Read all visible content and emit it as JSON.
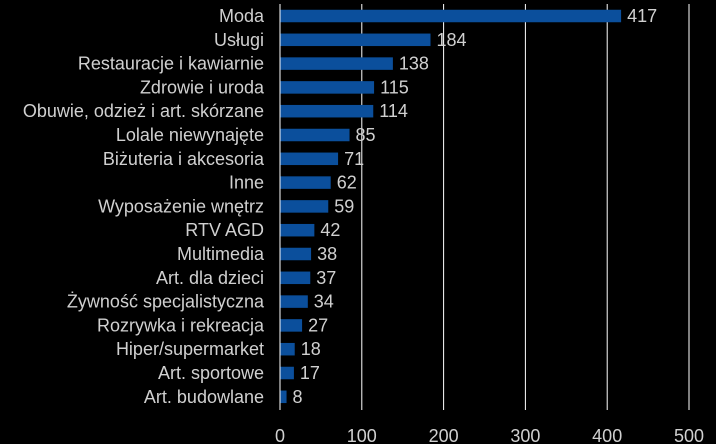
{
  "chart_data": {
    "type": "bar",
    "orientation": "horizontal",
    "categories": [
      "Moda",
      "Usługi",
      "Restauracje i kawiarnie",
      "Zdrowie i uroda",
      "Obuwie, odzież i art. skórzane",
      "Lolale niewynajęte",
      "Biżuteria i akcesoria",
      "Inne",
      "Wyposażenie wnętrz",
      "RTV AGD",
      "Multimedia",
      "Art. dla dzieci",
      "Żywność specjalistyczna",
      "Rozrywka i rekreacja",
      "Hiper/supermarket",
      "Art. sportowe",
      "Art. budowlane"
    ],
    "values": [
      417,
      184,
      138,
      115,
      114,
      85,
      71,
      62,
      59,
      42,
      38,
      37,
      34,
      27,
      18,
      17,
      8
    ],
    "data_labels": [
      "417",
      "184",
      "138",
      "115",
      "114",
      "85",
      "71",
      "62",
      "59",
      "42",
      "38",
      "37",
      "34",
      "27",
      "18",
      "17",
      "8"
    ],
    "xticks": [
      "0",
      "100",
      "200",
      "300",
      "400",
      "500"
    ],
    "xlim": [
      0,
      500
    ],
    "grid": true,
    "title": "",
    "xlabel": "",
    "ylabel": ""
  },
  "colors": {
    "background": "#000000",
    "bar": "#0b4f9c",
    "bar_edge": "#0a3e7a",
    "text": "#d0d0d0",
    "grid": "#ffffff",
    "axis": "#ffffff"
  }
}
